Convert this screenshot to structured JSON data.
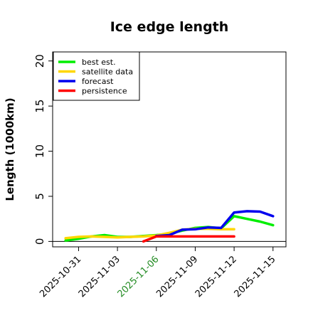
{
  "chart_data": {
    "type": "line",
    "title": "Ice edge length",
    "xlabel": "",
    "ylabel": "Length (1000km)",
    "ylim": [
      -0.6,
      21
    ],
    "xlim": [
      "2025-10-29",
      "2025-11-16"
    ],
    "yticks": [
      "0",
      "5",
      "10",
      "15",
      "20"
    ],
    "xticks": [
      {
        "label": "2025-10-31",
        "color": "#000000"
      },
      {
        "label": "2025-11-03",
        "color": "#000000"
      },
      {
        "label": "2025-11-06",
        "color": "#228b22"
      },
      {
        "label": "2025-11-09",
        "color": "#000000"
      },
      {
        "label": "2025-11-12",
        "color": "#000000"
      },
      {
        "label": "2025-11-15",
        "color": "#000000"
      }
    ],
    "grid": false,
    "legend_position": "top-left",
    "series": [
      {
        "name": "best est.",
        "color": "#00ee00",
        "x": [
          "2025-10-30",
          "2025-10-31",
          "2025-11-01",
          "2025-11-02",
          "2025-11-03",
          "2025-11-04",
          "2025-11-05",
          "2025-11-06",
          "2025-11-07",
          "2025-11-08",
          "2025-11-09",
          "2025-11-10",
          "2025-11-11",
          "2025-11-12",
          "2025-11-13",
          "2025-11-14",
          "2025-11-15"
        ],
        "y": [
          0.1,
          0.3,
          0.55,
          0.7,
          0.5,
          0.5,
          0.6,
          0.7,
          0.85,
          1.2,
          1.5,
          1.6,
          1.45,
          2.8,
          2.5,
          2.2,
          1.8
        ]
      },
      {
        "name": "satellite data",
        "color": "#ffd700",
        "x": [
          "2025-10-30",
          "2025-10-31",
          "2025-11-01",
          "2025-11-02",
          "2025-11-03",
          "2025-11-04",
          "2025-11-05",
          "2025-11-06",
          "2025-11-07",
          "2025-11-08",
          "2025-11-09",
          "2025-11-10",
          "2025-11-11",
          "2025-11-12"
        ],
        "y": [
          0.35,
          0.5,
          0.55,
          0.5,
          0.45,
          0.5,
          0.55,
          0.65,
          0.95,
          1.3,
          1.4,
          1.4,
          1.35,
          1.35
        ]
      },
      {
        "name": "forecast",
        "color": "#0000ee",
        "x": [
          "2025-11-06",
          "2025-11-07",
          "2025-11-08",
          "2025-11-09",
          "2025-11-10",
          "2025-11-11",
          "2025-11-12",
          "2025-11-13",
          "2025-11-14",
          "2025-11-15"
        ],
        "y": [
          0.6,
          0.7,
          1.3,
          1.35,
          1.55,
          1.5,
          3.2,
          3.35,
          3.3,
          2.8
        ]
      },
      {
        "name": "persistence",
        "color": "#ff0000",
        "x": [
          "2025-11-05",
          "2025-11-06",
          "2025-11-07",
          "2025-11-08",
          "2025-11-09",
          "2025-11-10",
          "2025-11-11",
          "2025-11-12"
        ],
        "y": [
          0.0,
          0.55,
          0.55,
          0.55,
          0.55,
          0.55,
          0.55,
          0.55
        ]
      }
    ]
  }
}
